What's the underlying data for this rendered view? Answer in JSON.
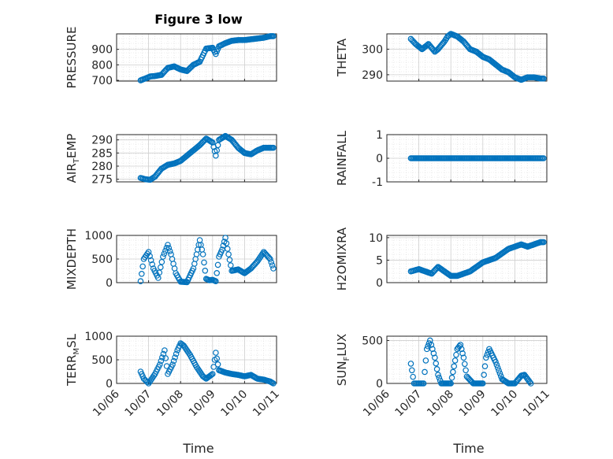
{
  "title": "Figure 3 low",
  "xlabel": "Time",
  "x_tick_labels": [
    "10/06",
    "10/07",
    "10/08",
    "10/09",
    "10/10",
    "10/11"
  ],
  "colors": {
    "marker": "#0072BD",
    "grid": "#d9d9d9",
    "axis": "#262626"
  },
  "chart_data": [
    {
      "type": "scatter",
      "ylabel_main": "PRESSURE",
      "ylabel_sub": "",
      "ylim": [
        695,
        1000
      ],
      "yticks": [
        700,
        800,
        900
      ],
      "show_xticks": false,
      "x": [
        0.75,
        0.9,
        1.05,
        1.2,
        1.4,
        1.6,
        1.8,
        2.0,
        2.2,
        2.4,
        2.6,
        2.8,
        3.0,
        3.1,
        3.2,
        3.4,
        3.6,
        3.8,
        4.0,
        4.2,
        4.4,
        4.6,
        4.8,
        4.9
      ],
      "y": [
        700,
        712,
        725,
        728,
        735,
        780,
        790,
        770,
        760,
        800,
        820,
        905,
        910,
        870,
        920,
        940,
        955,
        960,
        960,
        965,
        970,
        975,
        985,
        985
      ]
    },
    {
      "type": "scatter",
      "ylabel_main": "THETA",
      "ylabel_sub": "",
      "ylim": [
        287.5,
        306
      ],
      "yticks": [
        290,
        300
      ],
      "show_xticks": false,
      "x": [
        0.75,
        0.9,
        1.1,
        1.3,
        1.5,
        1.6,
        1.8,
        1.9,
        2.0,
        2.2,
        2.4,
        2.6,
        2.8,
        3.0,
        3.2,
        3.4,
        3.6,
        3.8,
        4.0,
        4.2,
        4.4,
        4.6,
        4.8,
        4.9
      ],
      "y": [
        304,
        302,
        300,
        302,
        299,
        300,
        303,
        305,
        306,
        305,
        303,
        300,
        299,
        297,
        296,
        294,
        292,
        291,
        289,
        288,
        289,
        289,
        288.5,
        288.5
      ]
    },
    {
      "type": "scatter",
      "ylabel_main": "AIR",
      "ylabel_sub": "T",
      "ylabel_tail": "EMP",
      "ylim": [
        274,
        292
      ],
      "yticks": [
        275,
        280,
        285,
        290
      ],
      "show_xticks": false,
      "x": [
        0.75,
        0.9,
        1.05,
        1.2,
        1.4,
        1.6,
        1.8,
        2.0,
        2.2,
        2.4,
        2.6,
        2.8,
        3.0,
        3.1,
        3.2,
        3.4,
        3.6,
        3.8,
        4.0,
        4.2,
        4.4,
        4.6,
        4.8,
        4.9
      ],
      "y": [
        275.5,
        275,
        274.8,
        276,
        279,
        280.5,
        281,
        282,
        284,
        286,
        288,
        290.5,
        289,
        284,
        290,
        291.5,
        290,
        287,
        285,
        284.5,
        286,
        287,
        287,
        287
      ]
    },
    {
      "type": "scatter",
      "ylabel_main": "RAINFALL",
      "ylabel_sub": "",
      "ylim": [
        -1,
        1
      ],
      "yticks": [
        -1,
        0,
        1
      ],
      "show_xticks": false,
      "x": [
        0.75,
        1.0,
        1.25,
        1.5,
        1.75,
        2.0,
        2.25,
        2.5,
        2.75,
        3.0,
        3.25,
        3.5,
        3.75,
        4.0,
        4.25,
        4.5,
        4.75,
        4.9
      ],
      "y": [
        0,
        0,
        0,
        0,
        0,
        0,
        0,
        0,
        0,
        0,
        0,
        0,
        0,
        0,
        0,
        0,
        0,
        0
      ]
    },
    {
      "type": "scatter",
      "ylabel_main": "MIXDEPTH",
      "ylabel_sub": "",
      "ylim": [
        0,
        1000
      ],
      "yticks": [
        0,
        500,
        1000
      ],
      "show_xticks": false,
      "x": [
        0.75,
        0.85,
        1.0,
        1.15,
        1.3,
        1.45,
        1.6,
        1.7,
        1.85,
        2.0,
        2.2,
        2.4,
        2.6,
        2.7,
        2.8,
        2.9,
        3.0,
        3.1,
        3.2,
        3.3,
        3.4,
        3.6,
        3.8,
        4.0,
        4.2,
        4.4,
        4.6,
        4.8,
        4.9
      ],
      "y": [
        30,
        500,
        650,
        300,
        100,
        550,
        800,
        600,
        200,
        20,
        10,
        300,
        900,
        600,
        80,
        50,
        60,
        30,
        550,
        700,
        950,
        250,
        280,
        200,
        300,
        450,
        650,
        500,
        300
      ]
    },
    {
      "type": "scatter",
      "ylabel_main": "H2OMIXRA",
      "ylabel_sub": "",
      "ylim": [
        0,
        10.5
      ],
      "yticks": [
        0,
        5,
        10
      ],
      "show_xticks": false,
      "x": [
        0.75,
        1.0,
        1.2,
        1.4,
        1.6,
        1.8,
        2.0,
        2.2,
        2.4,
        2.6,
        2.8,
        3.0,
        3.2,
        3.4,
        3.6,
        3.8,
        4.0,
        4.2,
        4.4,
        4.6,
        4.8,
        4.9
      ],
      "y": [
        2.5,
        3,
        2.5,
        2,
        3.5,
        2.5,
        1.5,
        1.5,
        2,
        2.5,
        3.5,
        4.5,
        5,
        5.5,
        6.5,
        7.5,
        8,
        8.5,
        8,
        8.5,
        9,
        9
      ]
    },
    {
      "type": "scatter",
      "ylabel_main": "TERR",
      "ylabel_sub": "M",
      "ylabel_tail": "SL",
      "ylim": [
        0,
        1000
      ],
      "yticks": [
        0,
        500,
        1000
      ],
      "show_xticks": true,
      "x": [
        0.75,
        0.85,
        1.0,
        1.2,
        1.35,
        1.5,
        1.6,
        1.75,
        1.9,
        2.0,
        2.1,
        2.3,
        2.5,
        2.7,
        2.8,
        3.0,
        3.1,
        3.2,
        3.4,
        3.6,
        3.8,
        4.0,
        4.2,
        4.4,
        4.6,
        4.8,
        4.9
      ],
      "y": [
        250,
        100,
        0,
        200,
        400,
        700,
        200,
        400,
        700,
        850,
        800,
        600,
        350,
        150,
        100,
        200,
        650,
        280,
        230,
        200,
        180,
        150,
        180,
        100,
        80,
        40,
        0
      ]
    },
    {
      "type": "scatter",
      "ylabel_main": "SUN",
      "ylabel_sub": "F",
      "ylabel_tail": "LUX",
      "ylim": [
        0,
        550
      ],
      "yticks": [
        0,
        500
      ],
      "show_xticks": true,
      "x": [
        0.75,
        0.85,
        1.0,
        1.15,
        1.25,
        1.35,
        1.5,
        1.6,
        1.7,
        1.8,
        2.0,
        2.1,
        2.2,
        2.3,
        2.4,
        2.5,
        2.7,
        2.9,
        3.0,
        3.1,
        3.2,
        3.4,
        3.6,
        3.8,
        4.0,
        4.2,
        4.3,
        4.4,
        4.5
      ],
      "y": [
        230,
        0,
        0,
        0,
        400,
        500,
        300,
        100,
        0,
        0,
        0,
        200,
        400,
        450,
        300,
        80,
        0,
        0,
        0,
        300,
        400,
        250,
        50,
        0,
        0,
        90,
        100,
        50,
        0
      ]
    }
  ]
}
